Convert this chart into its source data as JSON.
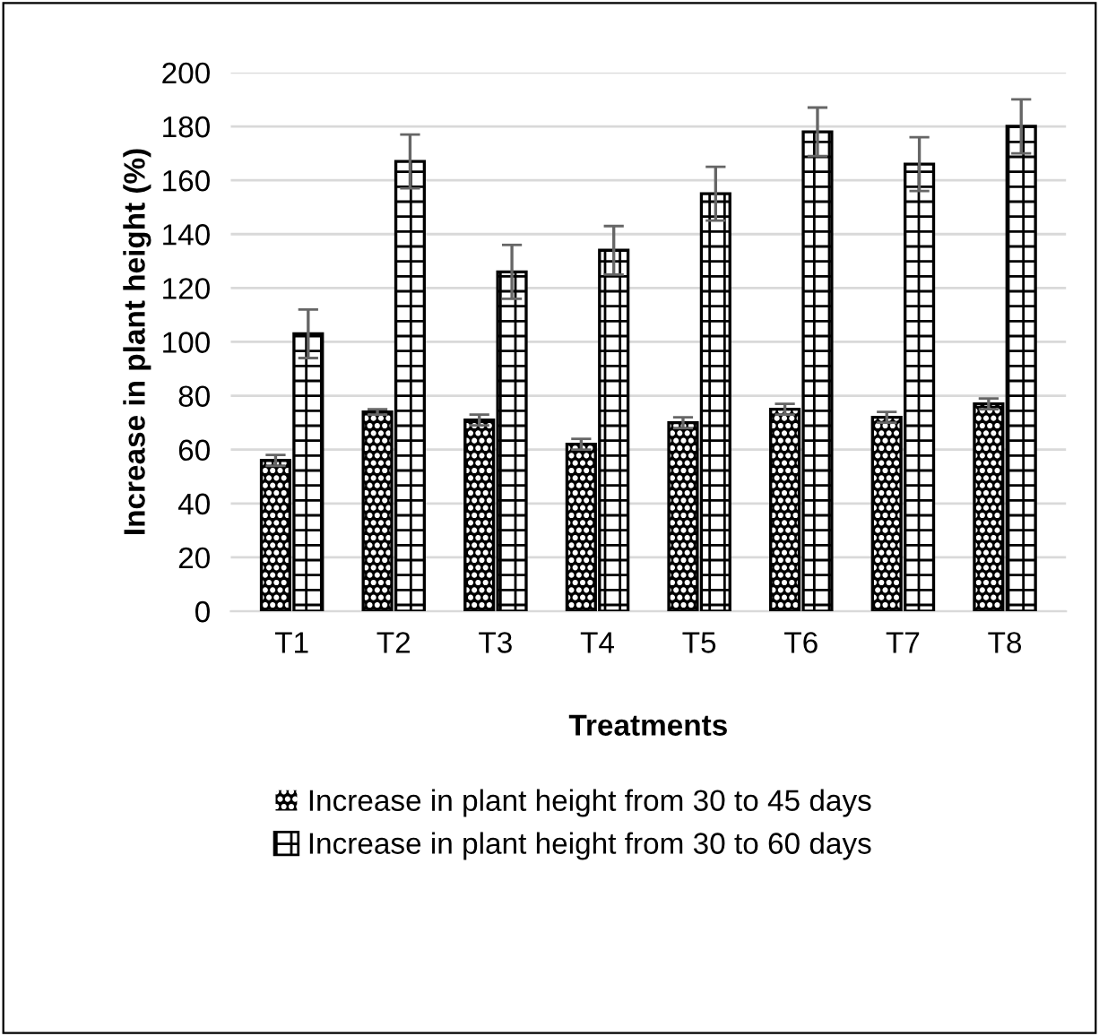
{
  "chart_data": {
    "type": "bar",
    "xlabel": "Treatments",
    "ylabel": "Increase in plant height (%)",
    "categories": [
      "T1",
      "T2",
      "T3",
      "T4",
      "T5",
      "T6",
      "T7",
      "T8"
    ],
    "series": [
      {
        "name": "Increase in plant height from 30 to 45 days",
        "color": "#000000",
        "values": [
          56,
          74,
          71,
          62,
          70,
          75,
          72,
          77
        ],
        "errors": [
          2,
          1,
          2,
          2,
          2,
          2,
          2,
          2
        ]
      },
      {
        "name": "Increase in plant height from 30 to 60 days",
        "color": "#ffffff",
        "values": [
          103,
          167,
          126,
          134,
          155,
          178,
          166,
          180
        ],
        "errors": [
          9,
          10,
          10,
          9,
          10,
          9,
          10,
          10
        ]
      }
    ],
    "ylim": [
      0,
      200
    ],
    "yticks": [
      0,
      20,
      40,
      60,
      80,
      100,
      120,
      140,
      160,
      180,
      200
    ],
    "grid": "y",
    "legend": "bottom"
  }
}
